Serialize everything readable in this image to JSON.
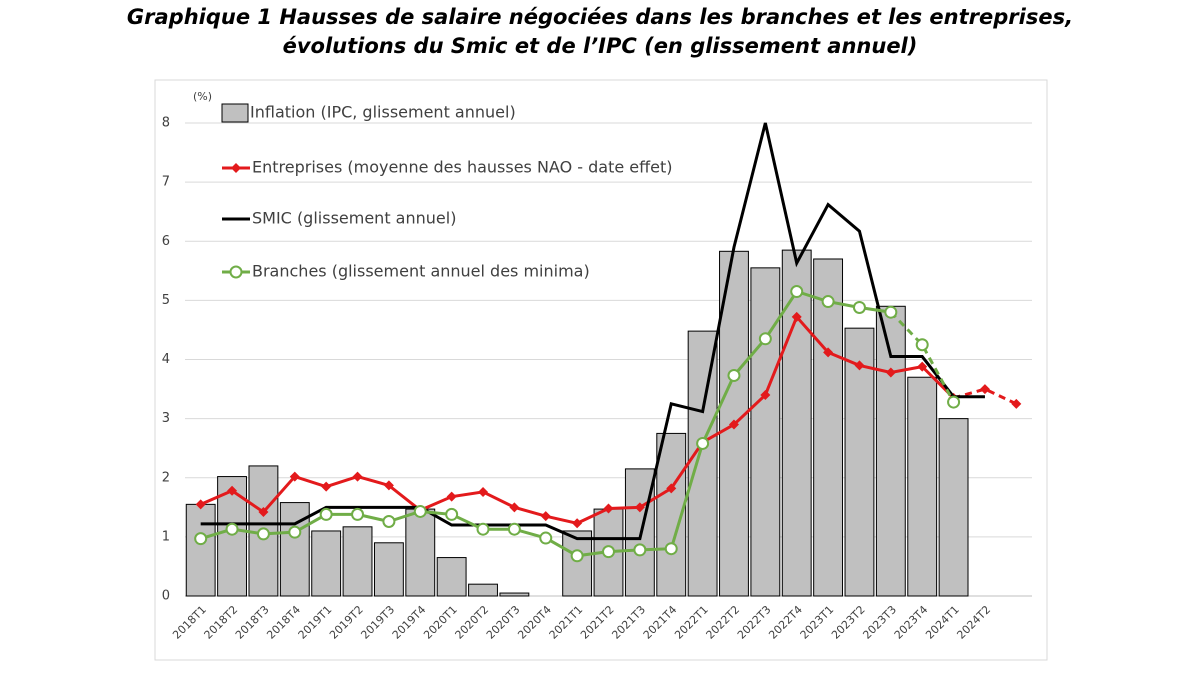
{
  "chart_data": {
    "type": "bar-line",
    "title": "Graphique 1 Hausses de salaire négociées dans les branches et les entreprises,",
    "subtitle": "évolutions du Smic et de l’IPC (en glissement annuel)",
    "y_unit": "(%)",
    "categories": [
      "2018T1",
      "2018T2",
      "2018T3",
      "2018T4",
      "2019T1",
      "2019T2",
      "2019T3",
      "2019T4",
      "2020T1",
      "2020T2",
      "2020T3",
      "2020T4",
      "2021T1",
      "2021T2",
      "2021T3",
      "2021T4",
      "2022T1",
      "2022T2",
      "2022T3",
      "2022T4",
      "2023T1",
      "2023T2",
      "2023T3",
      "2023T4",
      "2024T1",
      "2024T2",
      null
    ],
    "ylim": [
      0,
      8
    ],
    "yticks": [
      0,
      1,
      2,
      3,
      4,
      5,
      6,
      7,
      8
    ],
    "grid": true,
    "series": [
      {
        "name": "Inflation (IPC, glissement annuel)",
        "kind": "bar",
        "color": "#c0c0c0",
        "values": [
          1.55,
          2.02,
          2.2,
          1.58,
          1.1,
          1.17,
          0.9,
          1.47,
          0.65,
          0.2,
          0.05,
          0,
          1.1,
          1.47,
          2.15,
          2.75,
          4.48,
          5.83,
          5.55,
          5.85,
          5.7,
          4.53,
          4.9,
          3.7,
          3.0,
          null,
          null
        ]
      },
      {
        "name": "Entreprises (moyenne des hausses NAO - date effet)",
        "kind": "line",
        "marker": "diamond",
        "color": "#e31a1c",
        "dashed_from": 24,
        "values": [
          1.55,
          1.78,
          1.42,
          2.02,
          1.85,
          2.02,
          1.87,
          1.45,
          1.68,
          1.76,
          1.5,
          1.35,
          1.23,
          1.48,
          1.5,
          1.82,
          2.6,
          2.9,
          3.4,
          4.72,
          4.12,
          3.9,
          3.78,
          3.88,
          3.35,
          3.5,
          3.25
        ]
      },
      {
        "name": "SMIC (glissement annuel)",
        "kind": "line",
        "marker": "none",
        "color": "#000000",
        "values": [
          1.22,
          1.22,
          1.22,
          1.22,
          1.5,
          1.5,
          1.5,
          1.5,
          1.2,
          1.2,
          1.2,
          1.2,
          0.97,
          0.97,
          0.97,
          3.25,
          3.12,
          5.9,
          8.0,
          5.63,
          6.62,
          6.17,
          4.05,
          4.05,
          3.37,
          3.37,
          null
        ]
      },
      {
        "name": "Branches (glissement annuel des minima)",
        "kind": "line",
        "marker": "circle",
        "color": "#70ad47",
        "dashed_from": 22,
        "values": [
          0.97,
          1.13,
          1.05,
          1.08,
          1.38,
          1.38,
          1.26,
          1.43,
          1.38,
          1.13,
          1.13,
          0.98,
          0.68,
          0.75,
          0.78,
          0.8,
          2.58,
          3.73,
          4.35,
          5.15,
          4.98,
          4.88,
          4.8,
          4.25,
          3.28,
          null,
          null
        ]
      }
    ]
  }
}
